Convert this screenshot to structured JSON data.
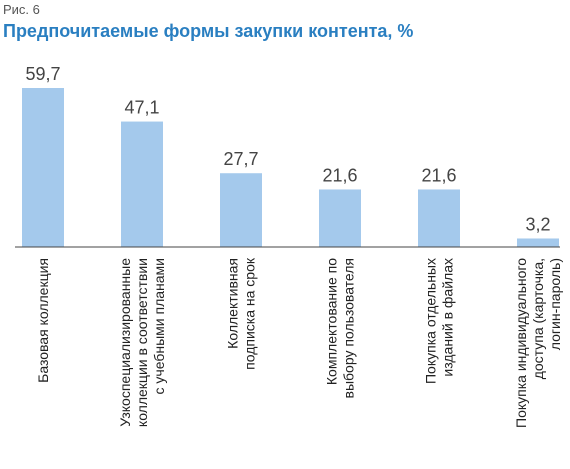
{
  "figure_label": "Рис. 6",
  "title": "Предпочитаемые формы закупки контента, %",
  "chart_data": {
    "type": "bar",
    "title": "Предпочитаемые формы закупки контента, %",
    "ylim": [
      0,
      59.7
    ],
    "bar_color": "#a4c9ec",
    "axis_color": "#444444",
    "title_color": "#2a7fc1",
    "categories": [
      [
        "Базовая коллекция"
      ],
      [
        "Узкоспециализированные",
        "коллекции в соответствии",
        "с учебными планами"
      ],
      [
        "Коллективная",
        "подписка на срок"
      ],
      [
        "Комплектование по",
        "выбору пользователя"
      ],
      [
        "Покупка отдельных",
        "изданий в файлах"
      ],
      [
        "Покупка индивидуального",
        "доступа (карточка,",
        "логин-пароль)"
      ]
    ],
    "values": [
      59.7,
      47.1,
      27.7,
      21.6,
      21.6,
      3.2
    ],
    "value_labels": [
      "59,7",
      "47,1",
      "27,7",
      "21,6",
      "21,6",
      "3,2"
    ]
  }
}
